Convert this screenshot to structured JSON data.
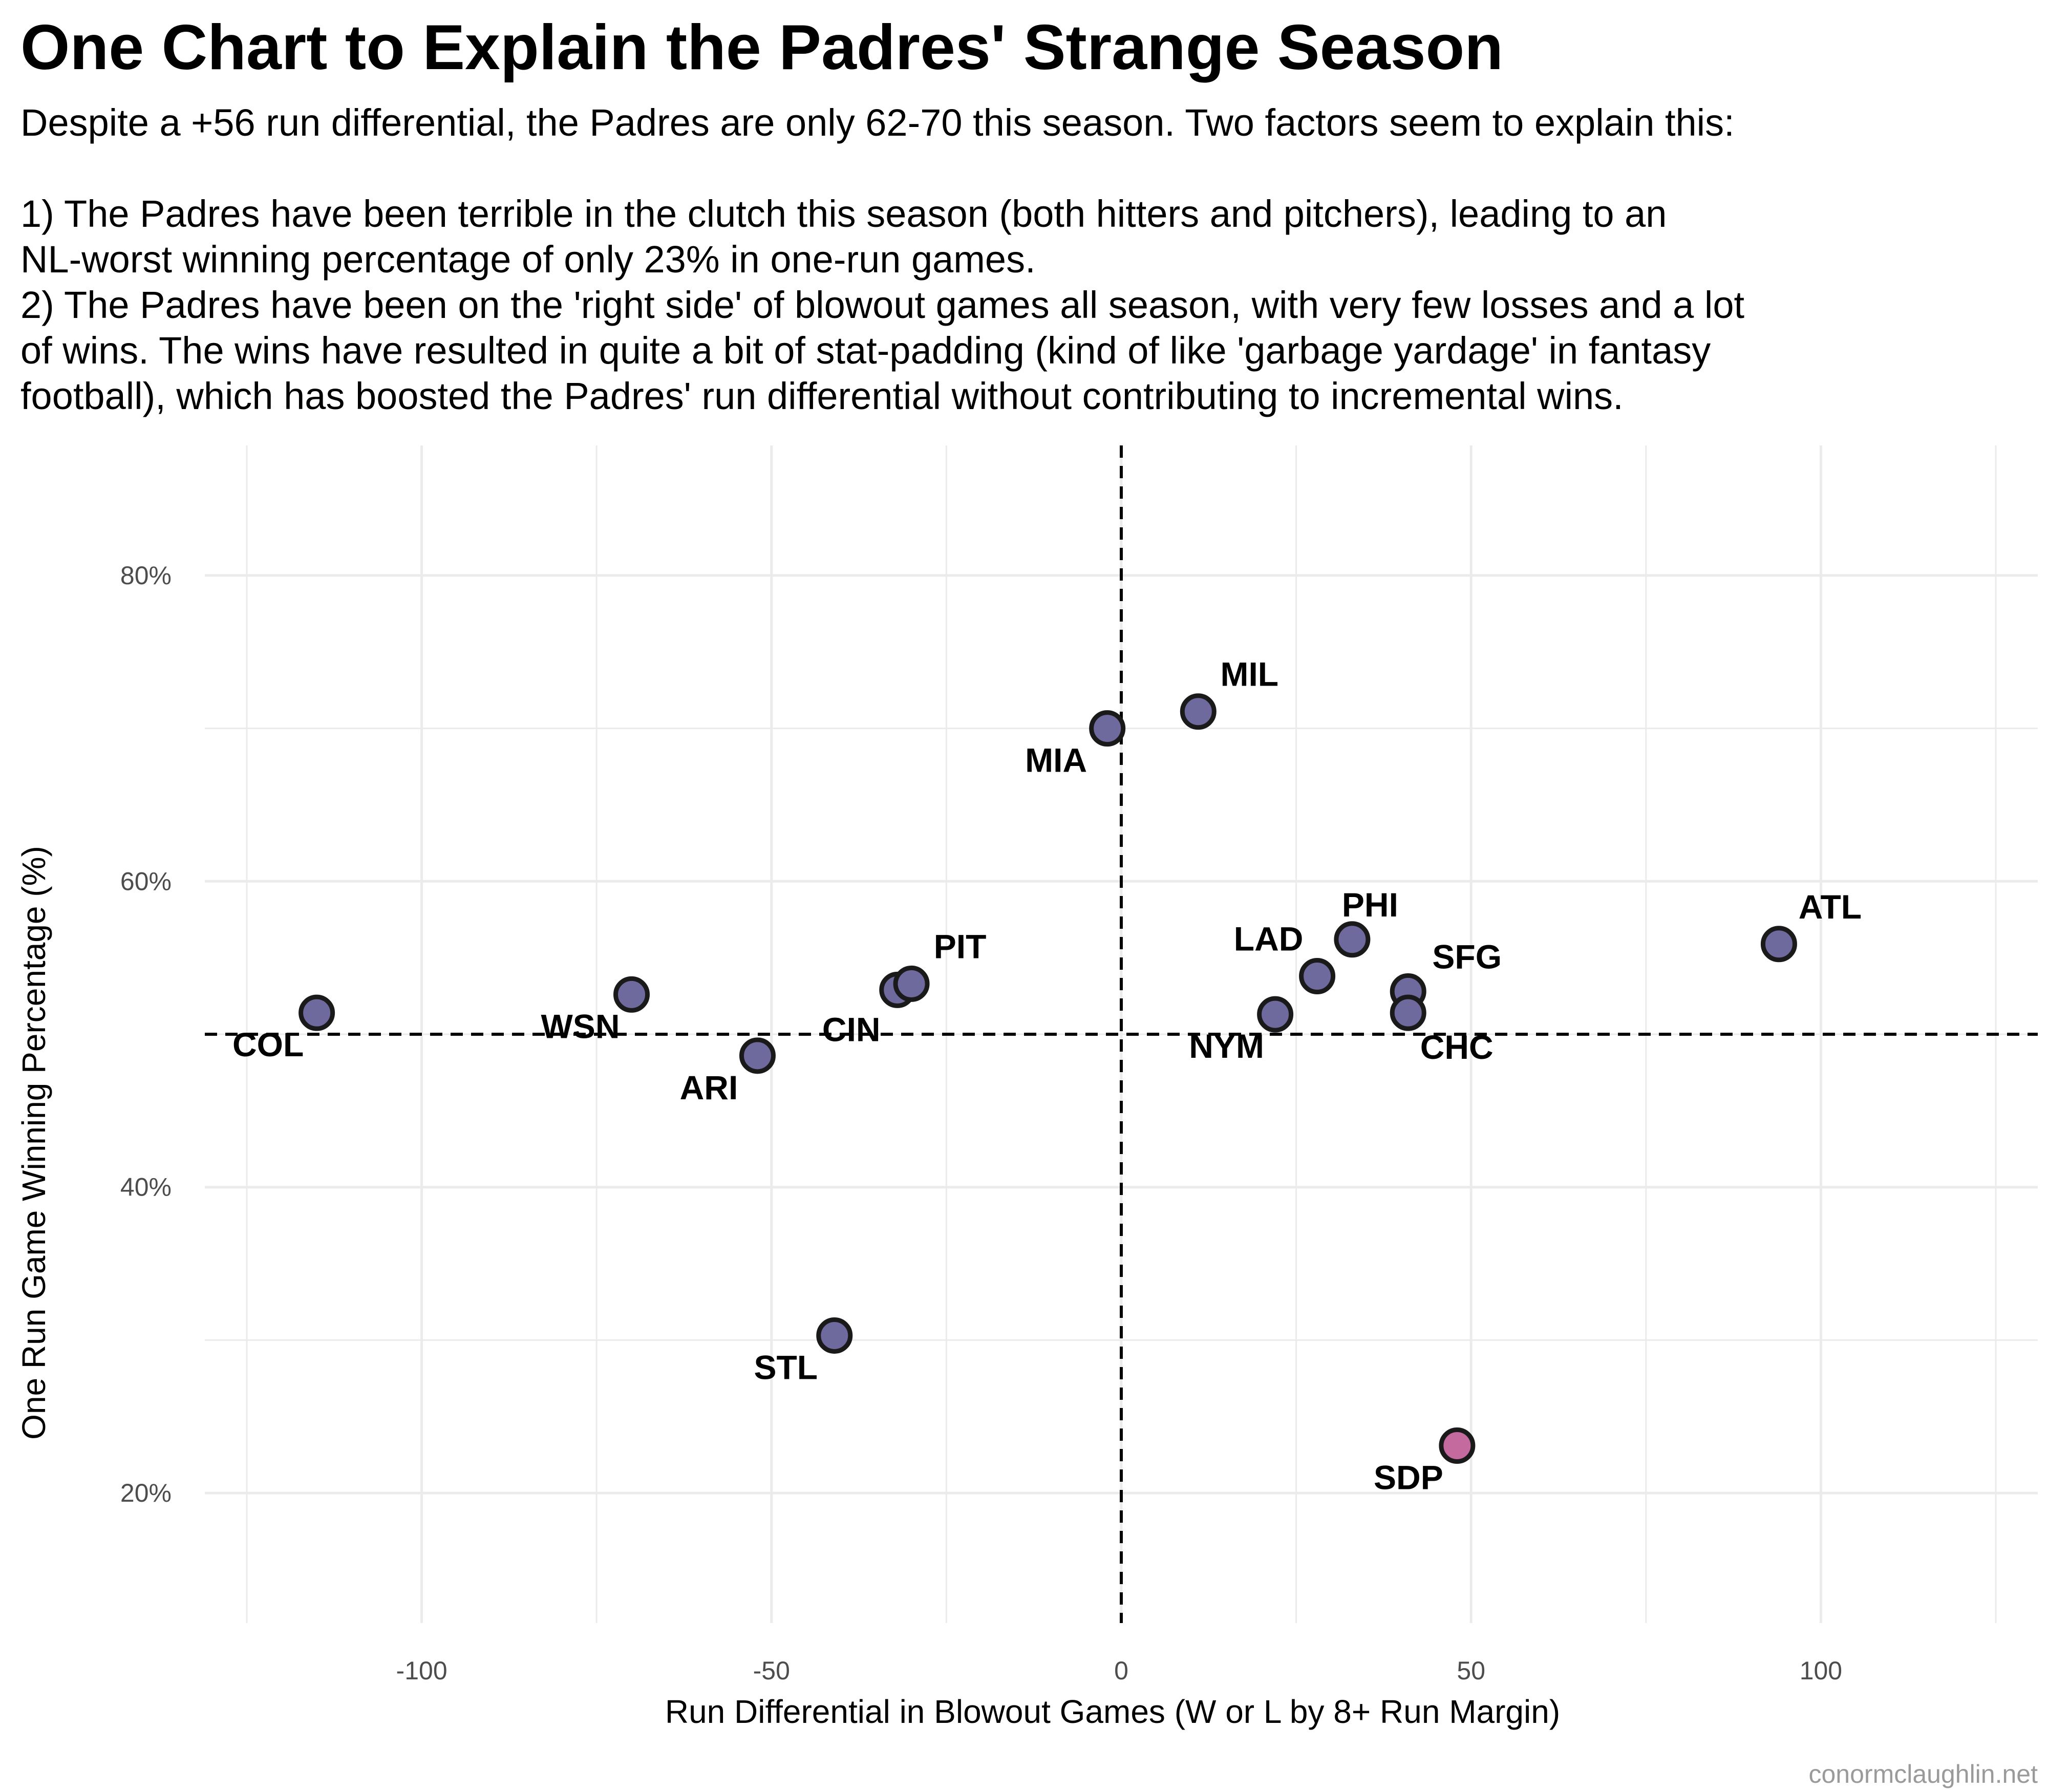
{
  "page": {
    "title": "One Chart to Explain the Padres' Strange Season",
    "subtitle_lines": [
      "Despite a +56 run differential, the Padres are only 62-70 this season. Two factors seem to explain this:",
      "",
      "1) The Padres have been terrible in the clutch this season (both hitters and pitchers), leading to an",
      "NL-worst winning percentage of only 23% in one-run games.",
      "2) The Padres have been on the 'right side' of blowout games all season, with very few losses and a lot",
      "of wins. The wins have resulted in quite a bit of stat-padding (kind of like 'garbage yardage' in fantasy",
      "football), which has boosted the Padres' run differential without contributing to incremental wins."
    ],
    "credit": "conormclaughlin.net"
  },
  "chart_data": {
    "type": "scatter",
    "xlabel": "Run Differential in Blowout Games (W or L by 8+ Run Margin)",
    "ylabel": "One Run Game Winning Percentage (%)",
    "xlim": [
      -131,
      131
    ],
    "ylim": [
      0.115,
      0.885
    ],
    "x_ticks": [
      -100,
      -50,
      0,
      50,
      100
    ],
    "x_tick_labels": [
      "-100",
      "-50",
      "0",
      "50",
      "100"
    ],
    "y_ticks": [
      0.2,
      0.4,
      0.6,
      0.8
    ],
    "y_tick_labels": [
      "20%",
      "40%",
      "60%",
      "80%"
    ],
    "reference_lines": {
      "x": 0,
      "y": 0.5,
      "style": "dashed"
    },
    "grid": true,
    "colors": {
      "default_point": "#6e6a9e",
      "highlight_point": "#c46a9e",
      "point_outline": "#1a1a1a"
    },
    "points": [
      {
        "team": "COL",
        "x": -115,
        "y": 0.514,
        "highlight": false
      },
      {
        "team": "WSN",
        "x": -70,
        "y": 0.526,
        "highlight": false
      },
      {
        "team": "ARI",
        "x": -52,
        "y": 0.486,
        "highlight": false
      },
      {
        "team": "CIN",
        "x": -32,
        "y": 0.529,
        "highlight": false
      },
      {
        "team": "PIT",
        "x": -30,
        "y": 0.533,
        "highlight": false
      },
      {
        "team": "STL",
        "x": -41,
        "y": 0.303,
        "highlight": false
      },
      {
        "team": "MIA",
        "x": -2,
        "y": 0.7,
        "highlight": false
      },
      {
        "team": "MIL",
        "x": 11,
        "y": 0.711,
        "highlight": false
      },
      {
        "team": "NYM",
        "x": 22,
        "y": 0.513,
        "highlight": false
      },
      {
        "team": "LAD",
        "x": 28,
        "y": 0.538,
        "highlight": false
      },
      {
        "team": "PHI",
        "x": 33,
        "y": 0.562,
        "highlight": false
      },
      {
        "team": "SFG",
        "x": 41,
        "y": 0.528,
        "highlight": false
      },
      {
        "team": "CHC",
        "x": 41,
        "y": 0.514,
        "highlight": false
      },
      {
        "team": "ATL",
        "x": 94,
        "y": 0.559,
        "highlight": false
      },
      {
        "team": "SDP",
        "x": 48,
        "y": 0.231,
        "highlight": true
      }
    ]
  }
}
